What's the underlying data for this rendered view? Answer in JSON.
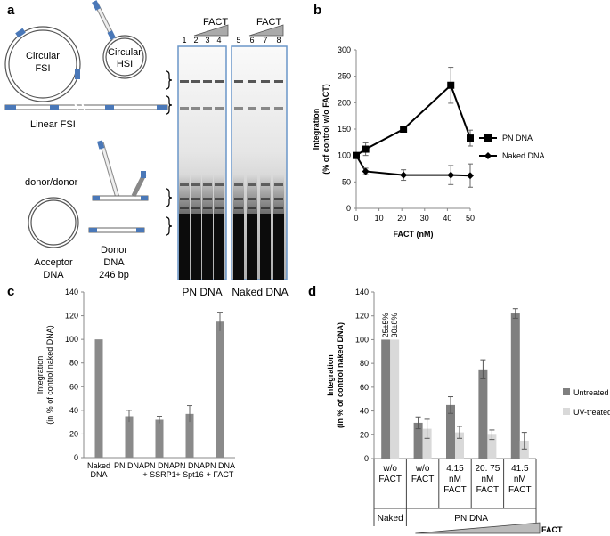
{
  "panels": {
    "a": "a",
    "b": "b",
    "c": "c",
    "d": "d"
  },
  "panel_a": {
    "labels": {
      "circ_fsi": "Circular\nFSI",
      "circ_hsi": "Circular\nHSI",
      "linear_fsi": "Linear FSI",
      "donor_donor": "donor/donor",
      "acceptor": "Acceptor\nDNA",
      "donor": "Donor\nDNA\n246 bp"
    },
    "gel": {
      "fact_left": "FACT",
      "fact_right": "FACT",
      "lanes": [
        "1",
        "2",
        "3",
        "4",
        "5",
        "6",
        "7",
        "8"
      ],
      "pn_label": "PN DNA",
      "naked_label": "Naked DNA"
    }
  },
  "chart_data": [
    {
      "type": "line",
      "panel": "b",
      "title": "",
      "xlabel": "FACT (nM)",
      "ylabel": "Integration\n(% of control w/o FACT)",
      "xlim": [
        0,
        50
      ],
      "ylim": [
        0,
        300
      ],
      "xticks": [
        "0",
        "10",
        "20",
        "30",
        "40",
        "50"
      ],
      "yticks": [
        "0",
        "50",
        "100",
        "150",
        "200",
        "250",
        "300"
      ],
      "series": [
        {
          "name": "PN DNA",
          "marker": "square",
          "x": [
            0,
            4.15,
            20.75,
            41.5,
            50
          ],
          "y": [
            100,
            112,
            150,
            233,
            133
          ],
          "err": [
            0,
            12,
            4,
            34,
            15
          ]
        },
        {
          "name": "Naked DNA",
          "marker": "diamond",
          "x": [
            0,
            4.15,
            20.75,
            41.5,
            50
          ],
          "y": [
            100,
            70,
            63,
            63,
            62
          ],
          "err": [
            0,
            6,
            10,
            18,
            22
          ]
        }
      ]
    },
    {
      "type": "bar",
      "panel": "c",
      "ylabel": "Integration\n(in % of control naked DNA)",
      "ylim": [
        0,
        140
      ],
      "yticks": [
        "0",
        "20",
        "40",
        "60",
        "80",
        "100",
        "120",
        "140"
      ],
      "categories": [
        "Naked\nDNA",
        "PN DNA",
        "PN DNA\n+ SSRP1",
        "PN DNA\n+ Spt16",
        "PN DNA\n+ FACT"
      ],
      "values": [
        100,
        35,
        32,
        37,
        115
      ],
      "err": [
        0,
        5,
        3,
        7,
        8
      ]
    },
    {
      "type": "bar",
      "panel": "d",
      "ylabel": "Integration\n(in % of control naked DNA)",
      "ylim": [
        0,
        140
      ],
      "yticks": [
        "0",
        "20",
        "40",
        "60",
        "80",
        "100",
        "120",
        "140"
      ],
      "categories": [
        "w/o\nFACT",
        "w/o\nFACT",
        "4.15\nnM\nFACT",
        "20. 75\nnM\nFACT",
        "41.5\nnM\nFACT"
      ],
      "groups": [
        "Naked",
        "PN DNA"
      ],
      "gradient_label": "FACT",
      "annotations": [
        "25±5%",
        "30±8%"
      ],
      "series": [
        {
          "name": "Untreated",
          "color": "#7f7f7f",
          "values": [
            100,
            30,
            45,
            75,
            122
          ],
          "err": [
            0,
            5,
            7,
            8,
            4
          ]
        },
        {
          "name": "UV-treated",
          "color": "#d9d9d9",
          "values": [
            100,
            25,
            22,
            20,
            15
          ],
          "err": [
            0,
            8,
            5,
            4,
            7
          ]
        }
      ]
    }
  ]
}
